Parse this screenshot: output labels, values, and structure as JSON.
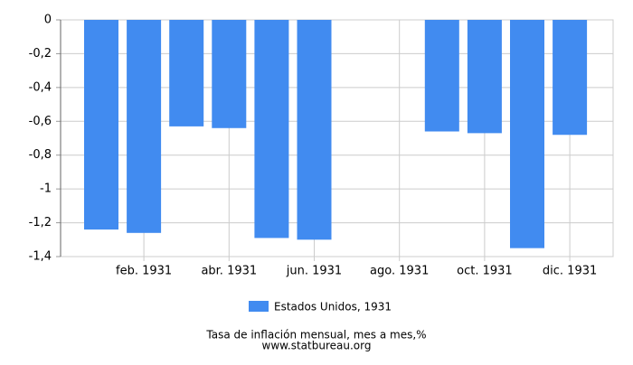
{
  "chart_data": {
    "type": "bar",
    "title": "Tasa de inflación mensual, mes a mes,%",
    "subtitle": "www.statbureau.org",
    "categories": [
      null,
      "feb. 1931",
      null,
      "abr. 1931",
      null,
      "jun. 1931",
      null,
      "ago. 1931",
      null,
      "oct. 1931",
      null,
      "dic. 1931"
    ],
    "series": [
      {
        "name": "Estados Unidos, 1931",
        "color": "#418bf0",
        "values": [
          -1.24,
          -1.26,
          -0.63,
          -0.64,
          -1.29,
          -1.3,
          null,
          null,
          -0.66,
          -0.67,
          -1.35,
          -0.68
        ]
      }
    ],
    "ylim": [
      -1.4,
      0
    ],
    "yticks": [
      0,
      {
        "value": -0.2,
        "label": "-0,2"
      },
      {
        "value": -0.4,
        "label": "-0,4"
      },
      {
        "value": -0.6,
        "label": "-0,6"
      },
      {
        "value": -0.8,
        "label": "-0,8"
      },
      -1,
      {
        "value": -1.2,
        "label": "-1,2"
      },
      {
        "value": -1.4,
        "label": "-1,4"
      }
    ],
    "grid": true,
    "legend": "bottom"
  }
}
